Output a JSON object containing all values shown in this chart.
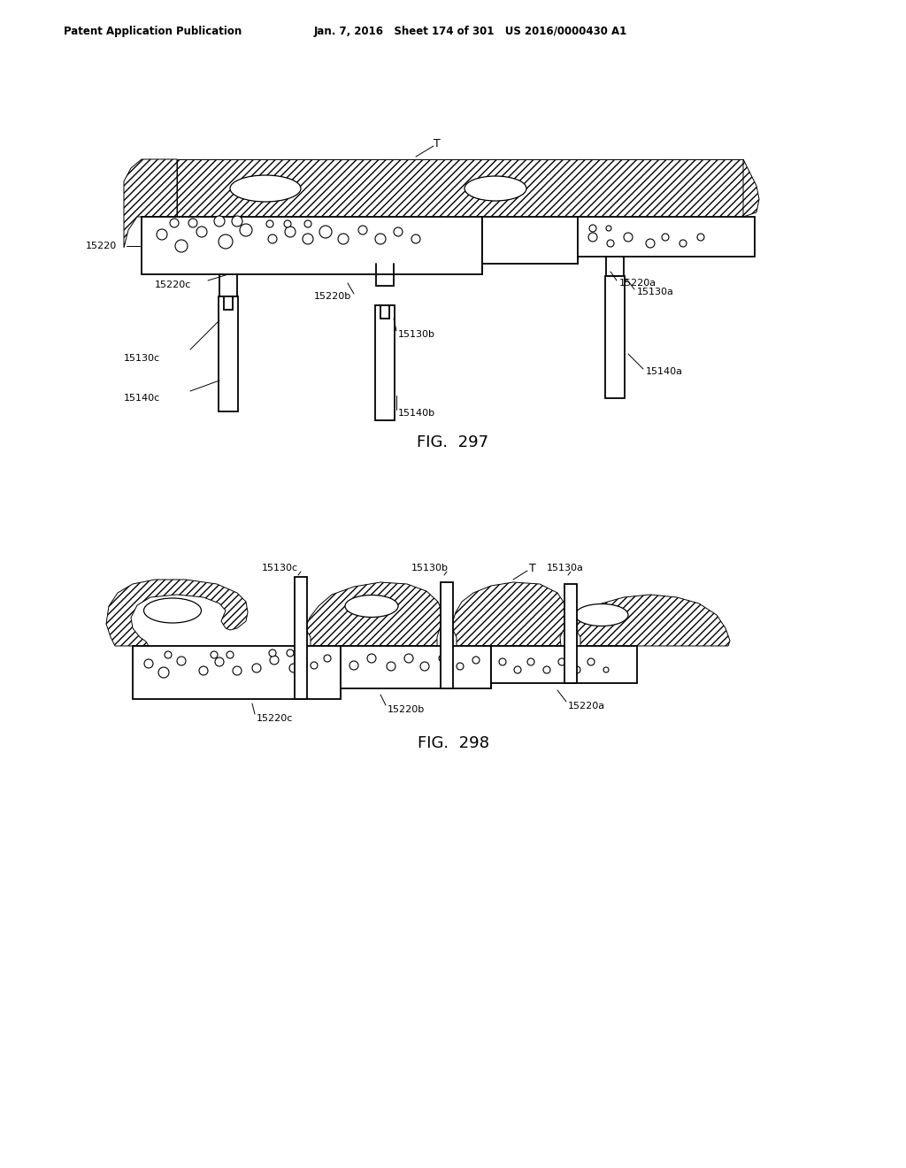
{
  "header_left": "Patent Application Publication",
  "header_mid": "Jan. 7, 2016   Sheet 174 of 301   US 2016/0000430 A1",
  "fig297_label": "FIG.  297",
  "fig298_label": "FIG.  298",
  "bg_color": "#ffffff",
  "line_color": "#000000"
}
